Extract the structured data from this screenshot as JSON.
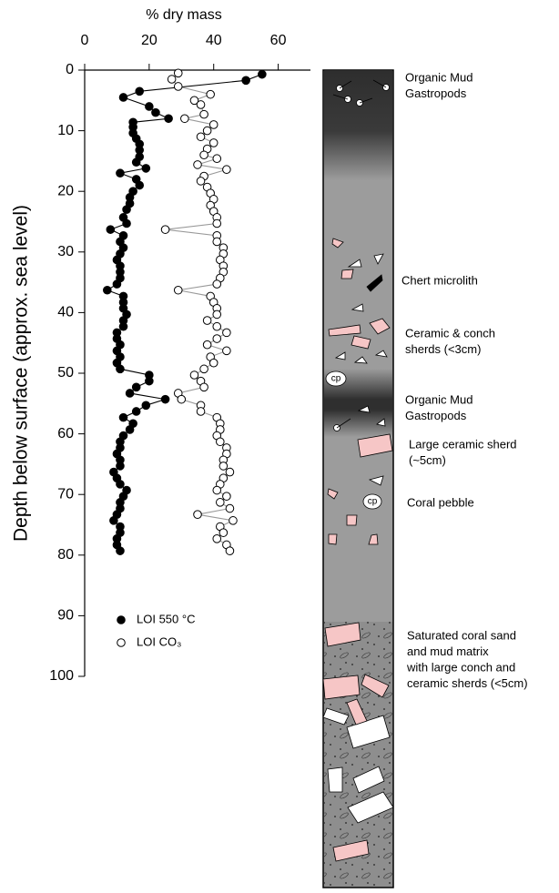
{
  "chart_data": {
    "type": "scatter",
    "xlabel": "% dry mass",
    "ylabel": "Depth below surface (approx. sea level)",
    "xlim": [
      0,
      70
    ],
    "xticks": [
      0,
      20,
      40,
      60
    ],
    "ylim": [
      0,
      100
    ],
    "yticks": [
      0,
      10,
      20,
      30,
      40,
      50,
      60,
      70,
      80,
      90,
      100
    ],
    "y_inverted": true,
    "series": [
      {
        "name": "LOI 550 °C",
        "color": "#000000",
        "marker": "filled",
        "line_color": "#000000",
        "x": [
          55,
          50,
          17,
          12,
          20,
          22,
          26,
          15,
          15,
          15,
          16,
          17,
          17,
          17,
          16,
          19,
          11,
          16,
          17,
          15,
          14,
          14,
          13,
          12,
          13,
          8,
          12,
          11,
          12,
          11,
          10,
          11,
          11,
          11,
          10,
          7,
          12,
          12,
          12,
          13,
          12,
          12,
          10,
          10,
          11,
          10,
          11,
          10,
          11,
          20,
          20,
          16,
          14,
          25,
          19,
          16,
          12,
          15,
          14,
          12,
          11,
          11,
          10,
          11,
          11,
          9,
          10,
          11,
          13,
          12,
          11,
          11,
          10,
          9,
          11,
          11,
          10,
          10,
          11
        ],
        "y": [
          0.7,
          1.7,
          3.5,
          4.5,
          6,
          7,
          8,
          8.6,
          9.4,
          10.4,
          11.3,
          12.2,
          13.2,
          14.3,
          15.2,
          16.2,
          17,
          18,
          19,
          20,
          21,
          22,
          23,
          24.3,
          25.3,
          26.3,
          27.3,
          28.3,
          29.3,
          30.3,
          31.3,
          32.3,
          33.3,
          34.3,
          35.3,
          36.3,
          37.3,
          38.3,
          39.3,
          40.3,
          41.3,
          42.3,
          43.3,
          44.3,
          45.3,
          46.3,
          47.3,
          48.3,
          49.3,
          50.3,
          51.3,
          52.3,
          53.3,
          54.3,
          55.3,
          56.3,
          57.3,
          58.3,
          59.3,
          60.3,
          61.3,
          62.3,
          63.3,
          64.3,
          65.3,
          66.3,
          67.3,
          68.3,
          69.3,
          70.3,
          71.3,
          72.3,
          73.3,
          74.3,
          75.3,
          76.3,
          77.3,
          78.3,
          79.3
        ]
      },
      {
        "name": "LOI CO₃",
        "color": "#000000",
        "marker": "open",
        "line_color": "#999999",
        "x": [
          29,
          27,
          29,
          39,
          34,
          36,
          37,
          31,
          40,
          38,
          36,
          40,
          38,
          37,
          41,
          35,
          44,
          37,
          36,
          38,
          39,
          40,
          39,
          40,
          41,
          41,
          25,
          41,
          41,
          43,
          43,
          42,
          43,
          43,
          42,
          41,
          29,
          39,
          40,
          41,
          41,
          38,
          41,
          44,
          41,
          38,
          44,
          39,
          40,
          37,
          34,
          36,
          37,
          29,
          30,
          36,
          36,
          41,
          42,
          42,
          41,
          42,
          44,
          44,
          43,
          43,
          45,
          43,
          42,
          41,
          44,
          42,
          45,
          35,
          46,
          42,
          43,
          41,
          44,
          45
        ],
        "y": [
          0.5,
          1.5,
          2.7,
          4,
          5,
          5.7,
          7.3,
          8,
          9,
          10,
          11,
          12,
          13,
          14,
          14.6,
          15.6,
          16.4,
          17.5,
          18.3,
          19.3,
          20.3,
          21.3,
          22.3,
          23.3,
          24.3,
          25.3,
          26.3,
          27.3,
          28.3,
          29.3,
          30.3,
          31.3,
          32.3,
          33.3,
          34.3,
          35.3,
          36.3,
          37.3,
          38.3,
          39.3,
          40.3,
          41.3,
          42.3,
          43.3,
          44.3,
          45.3,
          46.3,
          47.3,
          48.3,
          49.3,
          50.3,
          51.3,
          52.3,
          53.3,
          54.3,
          55.3,
          56.3,
          57.3,
          58.3,
          59.3,
          60.3,
          61.3,
          62.3,
          63.3,
          64.3,
          65.3,
          66.3,
          67.3,
          68.3,
          69.3,
          70.3,
          71.3,
          72.3,
          73.3,
          74.3,
          75.3,
          76.3,
          77.3,
          78.3,
          79.3
        ]
      }
    ],
    "annotations": [
      {
        "lines": [
          "Organic Mud",
          "Gastropods"
        ]
      },
      {
        "lines": [
          "Chert microlith"
        ]
      },
      {
        "lines": [
          "Ceramic & conch",
          "sherds (<3cm)"
        ]
      },
      {
        "lines": [
          "Organic Mud",
          "Gastropods"
        ]
      },
      {
        "lines": [
          "Large ceramic sherd",
          "(~5cm)"
        ]
      },
      {
        "lines": [
          "Coral pebble"
        ]
      },
      {
        "lines": [
          "Saturated coral sand",
          "and mud matrix",
          "with large conch and",
          "ceramic sherds (<5cm)"
        ]
      }
    ],
    "core_labels": [
      "cp",
      "cp"
    ]
  }
}
